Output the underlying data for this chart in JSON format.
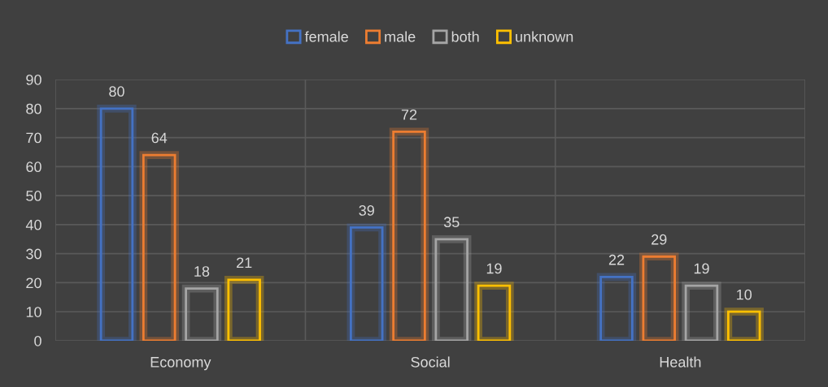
{
  "chart_data": {
    "type": "bar",
    "categories": [
      "Economy",
      "Social",
      "Health"
    ],
    "series": [
      {
        "name": "female",
        "color": "#4472c4",
        "values": [
          80,
          39,
          22
        ]
      },
      {
        "name": "male",
        "color": "#ed7d31",
        "values": [
          64,
          72,
          29
        ]
      },
      {
        "name": "both",
        "color": "#a5a5a5",
        "values": [
          18,
          35,
          19
        ]
      },
      {
        "name": "unknown",
        "color": "#ffc000",
        "values": [
          21,
          19,
          10
        ]
      }
    ],
    "ylim": [
      0,
      90
    ],
    "yticks": [
      0,
      10,
      20,
      30,
      40,
      50,
      60,
      70,
      80,
      90
    ],
    "grid": true,
    "legend": "top",
    "data_labels": true
  }
}
